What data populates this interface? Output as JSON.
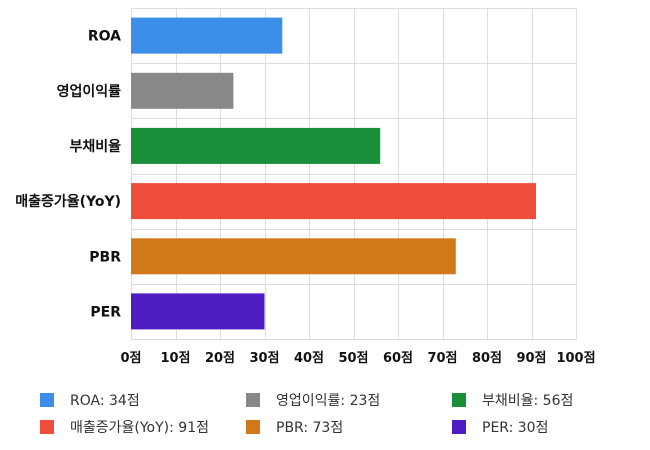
{
  "chart_data": {
    "type": "bar",
    "orientation": "horizontal",
    "categories": [
      "ROA",
      "영업이익률",
      "부채비율",
      "매출증가율(YoY)",
      "PBR",
      "PER"
    ],
    "values": [
      34,
      23,
      56,
      91,
      73,
      30
    ],
    "colors": [
      "#3b8fe8",
      "#888888",
      "#1a8f3a",
      "#ee4e3a",
      "#d0781a",
      "#4e1dc4"
    ],
    "xlim": [
      0,
      100
    ],
    "xticks": [
      0,
      10,
      20,
      30,
      40,
      50,
      60,
      70,
      80,
      90,
      100
    ],
    "xtick_labels": [
      "0점",
      "10점",
      "20점",
      "30점",
      "40점",
      "50점",
      "60점",
      "70점",
      "80점",
      "90점",
      "100점"
    ],
    "grid": true,
    "legend": {
      "placement": "bottom",
      "entries": [
        "ROA: 34점",
        "영업이익률: 23점",
        "부채비율: 56점",
        "매출증가율(YoY): 91점",
        "PBR: 73점",
        "PER: 30점"
      ]
    }
  }
}
